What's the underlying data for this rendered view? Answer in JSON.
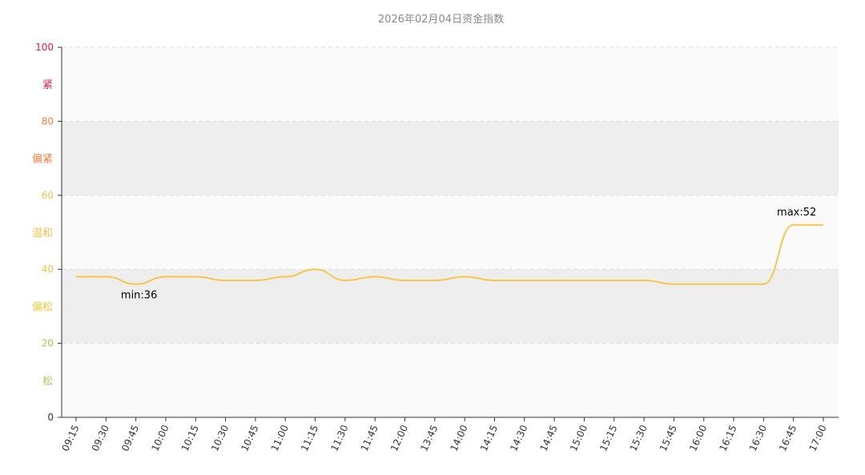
{
  "chart_data": {
    "type": "line",
    "title": "2026年02月04日资金指数",
    "xlabel": "",
    "ylabel": "",
    "ylim": [
      0,
      100
    ],
    "y_ticks": [
      {
        "value": 0,
        "label": "0",
        "color": "#333333"
      },
      {
        "value": 20,
        "label": "20",
        "color": "#9bcf4b"
      },
      {
        "value": 40,
        "label": "40",
        "color": "#e8c93a"
      },
      {
        "value": 60,
        "label": "60",
        "color": "#f5c04a"
      },
      {
        "value": 80,
        "label": "80",
        "color": "#f07f40"
      },
      {
        "value": 100,
        "label": "100",
        "color": "#e81e3c"
      }
    ],
    "bands": [
      {
        "from": 0,
        "to": 20,
        "label": "松",
        "label_color": "#9bcf4b",
        "fill": "#fafafa"
      },
      {
        "from": 20,
        "to": 40,
        "label": "偏松",
        "label_color": "#e8c93a",
        "fill": "#eeeeee"
      },
      {
        "from": 40,
        "to": 60,
        "label": "温和",
        "label_color": "#f5c04a",
        "fill": "#fafafa"
      },
      {
        "from": 60,
        "to": 80,
        "label": "偏紧",
        "label_color": "#f07f40",
        "fill": "#eeeeee"
      },
      {
        "from": 80,
        "to": 100,
        "label": "紧",
        "label_color": "#e81e3c",
        "fill": "#fafafa"
      }
    ],
    "categories": [
      "09:15",
      "09:30",
      "09:45",
      "10:00",
      "10:15",
      "10:30",
      "10:45",
      "11:00",
      "11:15",
      "11:30",
      "11:45",
      "12:00",
      "13:45",
      "14:00",
      "14:15",
      "14:30",
      "14:45",
      "15:00",
      "15:15",
      "15:30",
      "15:45",
      "16:00",
      "16:15",
      "16:30",
      "16:45",
      "17:00"
    ],
    "series": [
      {
        "color": "#f5c84c",
        "values": [
          38,
          38,
          36,
          38,
          38,
          37,
          37,
          38,
          40,
          37,
          38,
          37,
          37,
          38,
          37,
          37,
          37,
          37,
          37,
          37,
          36,
          36,
          36,
          36,
          52,
          52
        ]
      }
    ],
    "annotations": [
      {
        "label": "min:36",
        "index": 2,
        "position": "below"
      },
      {
        "label": "max:52",
        "index": 24,
        "position": "above"
      }
    ],
    "grid": true,
    "legend": "none"
  }
}
